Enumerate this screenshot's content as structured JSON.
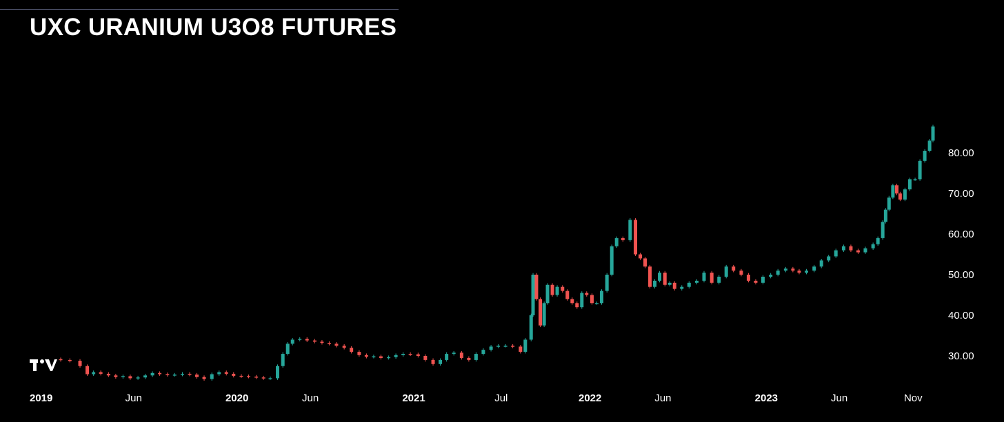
{
  "title": "UXC URANIUM U3O8 FUTURES",
  "chart_data": {
    "type": "candlestick",
    "title": "UXC URANIUM U3O8 FUTURES",
    "xlabel": "",
    "ylabel": "",
    "ylim": [
      22,
      90
    ],
    "y_ticks": [
      "30.00",
      "40.00",
      "50.00",
      "60.00",
      "70.00",
      "80.00"
    ],
    "x_ticks": [
      {
        "label": "2019",
        "date": "2019-01-01",
        "bold": true
      },
      {
        "label": "Jun",
        "date": "2019-06-01",
        "bold": false
      },
      {
        "label": "2020",
        "date": "2020-01-01",
        "bold": true
      },
      {
        "label": "Jun",
        "date": "2020-06-01",
        "bold": false
      },
      {
        "label": "2021",
        "date": "2021-01-01",
        "bold": true
      },
      {
        "label": "Jul",
        "date": "2021-07-01",
        "bold": false
      },
      {
        "label": "2022",
        "date": "2022-01-01",
        "bold": true
      },
      {
        "label": "Jun",
        "date": "2022-06-01",
        "bold": false
      },
      {
        "label": "2023",
        "date": "2023-01-01",
        "bold": true
      },
      {
        "label": "Jun",
        "date": "2023-06-01",
        "bold": false
      },
      {
        "label": "Nov",
        "date": "2023-11-01",
        "bold": false
      }
    ],
    "grid": false,
    "colors": {
      "up": "#26a69a",
      "down": "#ef5350",
      "background": "#000000",
      "text": "#ffffff"
    },
    "close_series": [
      [
        "2019-01-01",
        29.0
      ],
      [
        "2019-01-20",
        28.8
      ],
      [
        "2019-02-10",
        27.5
      ],
      [
        "2019-02-25",
        25.5
      ],
      [
        "2019-03-10",
        26.0
      ],
      [
        "2019-03-25",
        25.6
      ],
      [
        "2019-04-10",
        25.2
      ],
      [
        "2019-04-25",
        24.8
      ],
      [
        "2019-05-10",
        25.0
      ],
      [
        "2019-05-25",
        24.5
      ],
      [
        "2019-06-10",
        24.7
      ],
      [
        "2019-06-25",
        25.2
      ],
      [
        "2019-07-10",
        25.8
      ],
      [
        "2019-07-25",
        25.5
      ],
      [
        "2019-08-10",
        25.3
      ],
      [
        "2019-08-25",
        25.4
      ],
      [
        "2019-09-10",
        25.6
      ],
      [
        "2019-09-25",
        25.4
      ],
      [
        "2019-10-10",
        24.8
      ],
      [
        "2019-10-25",
        24.3
      ],
      [
        "2019-11-10",
        25.5
      ],
      [
        "2019-11-25",
        26.0
      ],
      [
        "2019-12-10",
        25.6
      ],
      [
        "2019-12-25",
        25.1
      ],
      [
        "2020-01-10",
        25.0
      ],
      [
        "2020-01-25",
        24.9
      ],
      [
        "2020-02-10",
        24.7
      ],
      [
        "2020-02-25",
        24.5
      ],
      [
        "2020-03-10",
        24.5
      ],
      [
        "2020-03-25",
        27.5
      ],
      [
        "2020-04-05",
        30.5
      ],
      [
        "2020-04-15",
        33.0
      ],
      [
        "2020-04-25",
        34.0
      ],
      [
        "2020-05-10",
        34.2
      ],
      [
        "2020-05-25",
        33.8
      ],
      [
        "2020-06-10",
        33.5
      ],
      [
        "2020-06-25",
        33.2
      ],
      [
        "2020-07-10",
        33.0
      ],
      [
        "2020-07-25",
        32.5
      ],
      [
        "2020-08-10",
        32.0
      ],
      [
        "2020-08-25",
        31.0
      ],
      [
        "2020-09-10",
        30.2
      ],
      [
        "2020-09-25",
        29.8
      ],
      [
        "2020-10-10",
        29.9
      ],
      [
        "2020-10-25",
        29.5
      ],
      [
        "2020-11-10",
        29.7
      ],
      [
        "2020-11-25",
        30.2
      ],
      [
        "2020-12-10",
        30.5
      ],
      [
        "2020-12-25",
        30.4
      ],
      [
        "2021-01-10",
        30.0
      ],
      [
        "2021-01-25",
        29.0
      ],
      [
        "2021-02-10",
        28.0
      ],
      [
        "2021-02-25",
        29.0
      ],
      [
        "2021-03-10",
        30.5
      ],
      [
        "2021-03-25",
        30.8
      ],
      [
        "2021-04-10",
        29.5
      ],
      [
        "2021-04-25",
        29.0
      ],
      [
        "2021-05-10",
        30.5
      ],
      [
        "2021-05-25",
        31.5
      ],
      [
        "2021-06-10",
        32.3
      ],
      [
        "2021-06-25",
        32.5
      ],
      [
        "2021-07-10",
        32.5
      ],
      [
        "2021-07-25",
        32.3
      ],
      [
        "2021-08-10",
        31.0
      ],
      [
        "2021-08-20",
        34.0
      ],
      [
        "2021-09-01",
        40.0
      ],
      [
        "2021-09-05",
        50.0
      ],
      [
        "2021-09-12",
        44.0
      ],
      [
        "2021-09-20",
        37.5
      ],
      [
        "2021-09-28",
        43.0
      ],
      [
        "2021-10-05",
        47.5
      ],
      [
        "2021-10-15",
        45.0
      ],
      [
        "2021-10-25",
        47.0
      ],
      [
        "2021-11-05",
        46.0
      ],
      [
        "2021-11-15",
        44.0
      ],
      [
        "2021-11-25",
        43.0
      ],
      [
        "2021-12-05",
        42.0
      ],
      [
        "2021-12-15",
        45.5
      ],
      [
        "2021-12-25",
        45.0
      ],
      [
        "2022-01-05",
        43.0
      ],
      [
        "2022-01-15",
        43.0
      ],
      [
        "2022-01-25",
        46.0
      ],
      [
        "2022-02-05",
        50.0
      ],
      [
        "2022-02-15",
        57.0
      ],
      [
        "2022-02-25",
        59.0
      ],
      [
        "2022-03-10",
        58.5
      ],
      [
        "2022-03-25",
        63.5
      ],
      [
        "2022-04-05",
        55.0
      ],
      [
        "2022-04-15",
        54.0
      ],
      [
        "2022-04-25",
        52.0
      ],
      [
        "2022-05-05",
        47.0
      ],
      [
        "2022-05-15",
        48.5
      ],
      [
        "2022-05-25",
        50.5
      ],
      [
        "2022-06-05",
        47.5
      ],
      [
        "2022-06-15",
        48.0
      ],
      [
        "2022-06-25",
        46.5
      ],
      [
        "2022-07-10",
        47.0
      ],
      [
        "2022-07-25",
        48.0
      ],
      [
        "2022-08-10",
        48.5
      ],
      [
        "2022-08-25",
        50.5
      ],
      [
        "2022-09-10",
        48.0
      ],
      [
        "2022-09-25",
        49.5
      ],
      [
        "2022-10-10",
        52.0
      ],
      [
        "2022-10-25",
        51.0
      ],
      [
        "2022-11-10",
        50.0
      ],
      [
        "2022-11-25",
        48.5
      ],
      [
        "2022-12-10",
        48.0
      ],
      [
        "2022-12-25",
        49.5
      ],
      [
        "2023-01-10",
        50.0
      ],
      [
        "2023-01-25",
        51.0
      ],
      [
        "2023-02-10",
        51.5
      ],
      [
        "2023-02-25",
        51.0
      ],
      [
        "2023-03-10",
        50.5
      ],
      [
        "2023-03-25",
        51.0
      ],
      [
        "2023-04-10",
        52.0
      ],
      [
        "2023-04-25",
        53.5
      ],
      [
        "2023-05-10",
        54.5
      ],
      [
        "2023-05-25",
        56.0
      ],
      [
        "2023-06-10",
        57.0
      ],
      [
        "2023-06-25",
        56.0
      ],
      [
        "2023-07-10",
        55.5
      ],
      [
        "2023-07-25",
        56.5
      ],
      [
        "2023-08-10",
        57.5
      ],
      [
        "2023-08-20",
        59.0
      ],
      [
        "2023-08-30",
        63.0
      ],
      [
        "2023-09-05",
        66.0
      ],
      [
        "2023-09-12",
        69.0
      ],
      [
        "2023-09-20",
        72.0
      ],
      [
        "2023-09-28",
        70.0
      ],
      [
        "2023-10-05",
        68.5
      ],
      [
        "2023-10-15",
        71.0
      ],
      [
        "2023-10-25",
        73.5
      ],
      [
        "2023-11-05",
        73.5
      ],
      [
        "2023-11-15",
        78.0
      ],
      [
        "2023-11-25",
        80.5
      ],
      [
        "2023-12-05",
        83.0
      ],
      [
        "2023-12-12",
        86.5
      ]
    ]
  }
}
